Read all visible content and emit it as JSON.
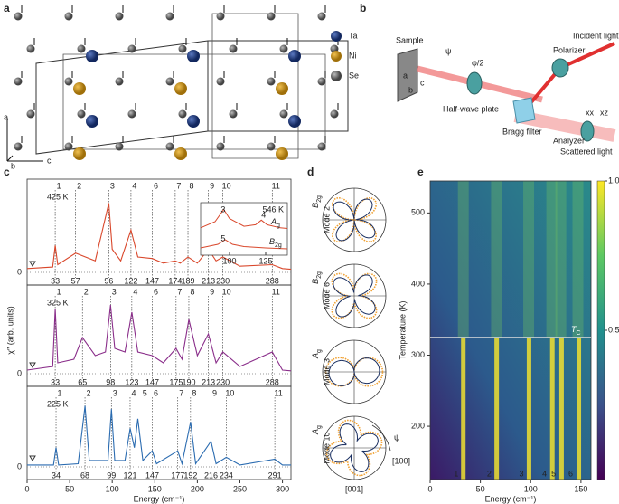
{
  "figure": {
    "a": {
      "label": "a",
      "legend": [
        "Ta",
        "Ni",
        "Se"
      ],
      "axes": [
        "a",
        "b",
        "c"
      ]
    },
    "b": {
      "label": "b",
      "sample": "Sample",
      "psi": "ψ",
      "half_angle": "φ/2",
      "half_wave_plate": "Half-wave plate",
      "bragg_filter": "Bragg filter",
      "polarizer": "Polarizer",
      "incident": "Incident light",
      "analyzer": "Analyzer",
      "scattered": "Scattered light",
      "xx": "xx",
      "xz": "xz",
      "axes": [
        "a",
        "c",
        "b"
      ]
    },
    "c": {
      "label": "c",
      "xlabel": "Energy (cm⁻¹)",
      "ylabel": "χ″ (arb. units)",
      "xlim": [
        0,
        310
      ],
      "xticks": [
        0,
        50,
        100,
        150,
        200,
        250,
        300
      ],
      "spectra": [
        {
          "temperature": "425 K",
          "zero": "0",
          "color": "#d9472b",
          "modes": [
            {
              "label": "1",
              "energy": 33
            },
            {
              "label": "2",
              "energy": 57
            },
            {
              "label": "3",
              "energy": 96
            },
            {
              "label": "4",
              "energy": 122
            },
            {
              "label": "6",
              "energy": 147
            },
            {
              "label": "7",
              "energy": 174
            },
            {
              "label": "8",
              "energy": 189
            },
            {
              "label": "9",
              "energy": 213
            },
            {
              "label": "10",
              "energy": 230
            },
            {
              "label": "11",
              "energy": 288
            }
          ],
          "curve": {
            "x": [
              0,
              30,
              33,
              36,
              57,
              80,
              96,
              100,
              110,
              122,
              130,
              147,
              160,
              174,
              180,
              189,
              200,
              213,
              222,
              230,
              250,
              288,
              300,
              310
            ],
            "y": [
              0.05,
              0.07,
              0.35,
              0.1,
              0.25,
              0.15,
              0.9,
              0.3,
              0.15,
              0.55,
              0.2,
              0.18,
              0.12,
              0.15,
              0.12,
              0.2,
              0.12,
              0.3,
              0.15,
              0.2,
              0.08,
              0.1,
              0.05,
              0.04
            ]
          }
        },
        {
          "temperature": "325 K",
          "zero": "0",
          "color": "#8a2e8a",
          "modes": [
            {
              "label": "1",
              "energy": 33
            },
            {
              "label": "2",
              "energy": 65
            },
            {
              "label": "3",
              "energy": 98
            },
            {
              "label": "4",
              "energy": 123
            },
            {
              "label": "6",
              "energy": 147
            },
            {
              "label": "7",
              "energy": 175
            },
            {
              "label": "8",
              "energy": 190
            },
            {
              "label": "9",
              "energy": 213
            },
            {
              "label": "10",
              "energy": 230
            },
            {
              "label": "11",
              "energy": 288
            }
          ],
          "curve": {
            "x": [
              0,
              30,
              33,
              36,
              55,
              65,
              80,
              92,
              98,
              103,
              115,
              123,
              130,
              147,
              160,
              175,
              182,
              190,
              200,
              213,
              222,
              230,
              250,
              288,
              300,
              310
            ],
            "y": [
              0.05,
              0.1,
              0.9,
              0.15,
              0.2,
              0.5,
              0.25,
              0.3,
              0.95,
              0.35,
              0.3,
              0.85,
              0.3,
              0.25,
              0.15,
              0.35,
              0.2,
              0.75,
              0.25,
              0.55,
              0.15,
              0.3,
              0.1,
              0.3,
              0.05,
              0.04
            ]
          }
        },
        {
          "temperature": "225 K",
          "zero": "0",
          "color": "#2a6bb0",
          "modes": [
            {
              "label": "1",
              "energy": 34
            },
            {
              "label": "2",
              "energy": 68
            },
            {
              "label": "3",
              "energy": 99
            },
            {
              "label": "4",
              "energy": 121
            },
            {
              "label": "5",
              "energy": null
            },
            {
              "label": "6",
              "energy": 147
            },
            {
              "label": "7",
              "energy": 177
            },
            {
              "label": "8",
              "energy": 192
            },
            {
              "label": "9",
              "energy": 216
            },
            {
              "label": "10",
              "energy": 234
            },
            {
              "label": "11",
              "energy": 291
            }
          ],
          "curve": {
            "x": [
              0,
              31,
              34,
              37,
              60,
              68,
              73,
              95,
              99,
              103,
              115,
              121,
              126,
              130,
              136,
              147,
              152,
              177,
              182,
              192,
              198,
              216,
              222,
              234,
              250,
              291,
              300,
              310
            ],
            "y": [
              0.03,
              0.03,
              0.3,
              0.03,
              0.05,
              0.95,
              0.1,
              0.1,
              0.9,
              0.1,
              0.1,
              0.6,
              0.3,
              0.75,
              0.1,
              0.25,
              0.05,
              0.25,
              0.05,
              0.7,
              0.05,
              0.4,
              0.05,
              0.15,
              0.03,
              0.12,
              0.03,
              0.03
            ]
          }
        }
      ],
      "inset": {
        "temperature": "546 K",
        "xlim": [
          80,
          140
        ],
        "xticks": [
          100,
          125
        ],
        "modes": [
          "3",
          "4",
          "5"
        ],
        "ag": {
          "sym": "A",
          "sub": "g",
          "x": [
            80,
            90,
            96,
            100,
            110,
            118,
            122,
            126,
            135,
            140
          ],
          "y": [
            0.3,
            0.5,
            0.9,
            0.6,
            0.35,
            0.4,
            0.55,
            0.4,
            0.3,
            0.28
          ]
        },
        "b2g": {
          "sym": "B",
          "sub": "2g",
          "x": [
            80,
            92,
            97,
            102,
            110,
            125,
            140
          ],
          "y": [
            0.12,
            0.2,
            0.3,
            0.2,
            0.15,
            0.12,
            0.1
          ]
        }
      }
    },
    "d": {
      "label": "d",
      "plots": [
        {
          "sym": "B",
          "sub": "2g",
          "mode": "Mode 2"
        },
        {
          "sym": "B",
          "sub": "2g",
          "mode": "Mode 6"
        },
        {
          "sym": "A",
          "sub": "g",
          "mode": "Mode 3"
        },
        {
          "sym": "A",
          "sub": "g",
          "mode": "Mode 10"
        }
      ],
      "psi": "ψ",
      "dir_100": "[100]",
      "dir_001": "[001]"
    },
    "e": {
      "label": "e",
      "xlabel": "Energy (cm⁻¹)",
      "ylabel": "Temperature (K)",
      "xlim": [
        0,
        160
      ],
      "xticks": [
        0,
        50,
        100,
        150
      ],
      "ylim": [
        125,
        545
      ],
      "yticks": [
        200,
        300,
        400,
        500
      ],
      "tc": 325,
      "tc_sym": "T",
      "tc_sub": "C",
      "colorbar": {
        "lim": [
          0,
          1
        ],
        "ticks": [
          0.5,
          {
            "value": 1,
            "label": "1.0"
          }
        ]
      },
      "modes": [
        {
          "label": "1",
          "energy": 33
        },
        {
          "label": "2",
          "energy": 66
        },
        {
          "label": "3",
          "energy": 98
        },
        {
          "label": "4",
          "energy": 121
        },
        {
          "label": "5",
          "energy": 130
        },
        {
          "label": "6",
          "energy": 147
        }
      ]
    }
  }
}
